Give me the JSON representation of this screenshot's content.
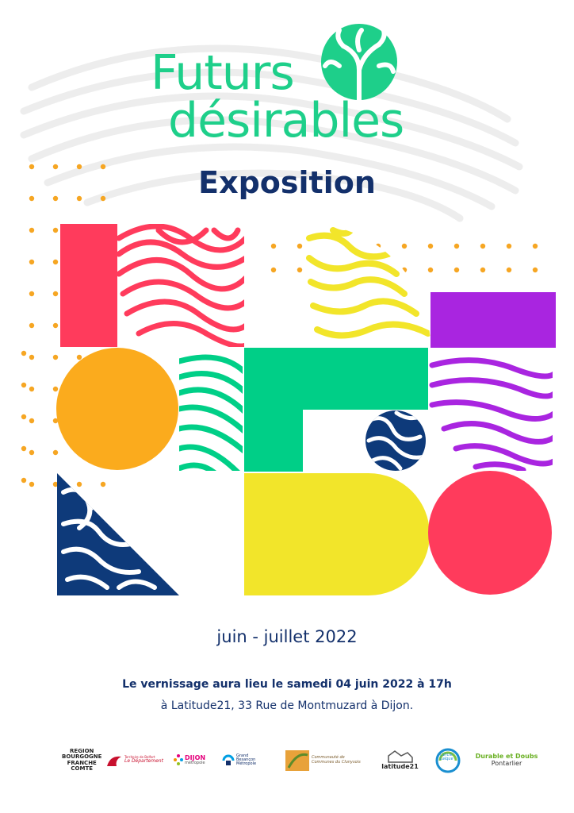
{
  "colors": {
    "logo_green": "#1ecf8a",
    "title_navy": "#13306b",
    "red": "#ff3b5c",
    "orange": "#fbab1d",
    "yellow": "#f2e52a",
    "purple": "#a925e0",
    "green": "#00cf87",
    "navy": "#0e3a7a",
    "dots": "#f6a623"
  },
  "logo": {
    "line1": "Futurs",
    "line2": "désirables",
    "icon": "tree-icon"
  },
  "title": "Exposition",
  "dates": "juin - juillet 2022",
  "vernissage": "Le vernissage aura lieu le samedi 04 juin 2022 à 17h",
  "address": "à Latitude21, 33 Rue de Montmuzard à Dijon.",
  "partners": {
    "region": [
      "REGION",
      "BOURGOGNE",
      "FRANCHE",
      "COMTE"
    ],
    "belfort": {
      "small": "Territoire de Belfort",
      "main": "Le Département"
    },
    "dijon": {
      "main": "DIJON",
      "sub": "métropole"
    },
    "besancon": [
      "Grand",
      "Besançon",
      "Métropole"
    ],
    "cluny": [
      "Communauté de",
      "Communes du Clunysois"
    ],
    "latitude": "latitude21",
    "cercle": [
      "Cercle",
      "Laïque"
    ],
    "durable": {
      "line1": "Durable et Doubs",
      "line2": "Pontarlier"
    }
  }
}
